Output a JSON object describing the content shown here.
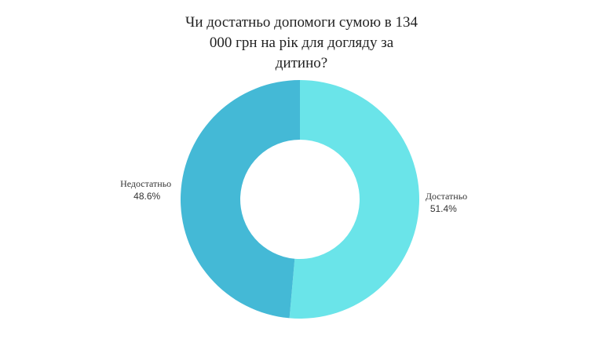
{
  "chart_data": {
    "type": "pie",
    "title": "Чи достатньо допомоги сумою в 134 000 грн на рік для догляду за дитино?",
    "categories": [
      "Достатньо",
      "Недостатньо"
    ],
    "values": [
      51.4,
      48.6
    ],
    "value_labels": [
      "51.4%",
      "48.6%"
    ],
    "colors": [
      "#6ae4e9",
      "#44b9d6"
    ],
    "donut": true
  }
}
